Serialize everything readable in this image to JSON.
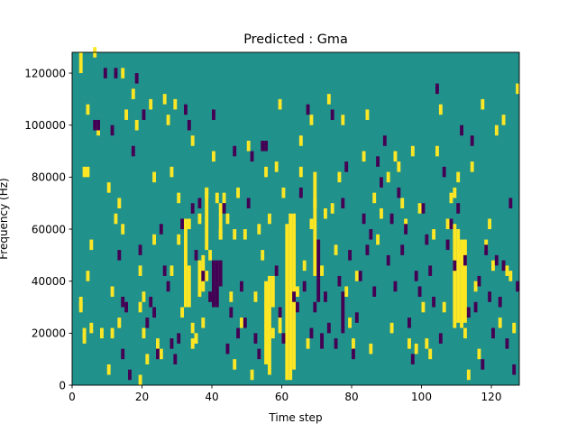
{
  "chart_data": {
    "type": "heatmap",
    "title": "Predicted : Gma",
    "xlabel": "Time step",
    "ylabel": "Frequency (Hz)",
    "xlim": [
      0,
      128
    ],
    "ylim": [
      0,
      128000
    ],
    "x_ticks": [
      0,
      20,
      40,
      60,
      80,
      100,
      120
    ],
    "y_ticks": [
      0,
      20000,
      40000,
      60000,
      80000,
      100000,
      120000
    ],
    "x_tick_labels": [
      "0",
      "20",
      "40",
      "60",
      "80",
      "100",
      "120"
    ],
    "y_tick_labels": [
      "0",
      "20000",
      "40000",
      "60000",
      "80000",
      "100000",
      "120000"
    ],
    "n_time_steps": 128,
    "n_frequency_bins": 64,
    "bin_height_hz": 2000,
    "colormap": "viridis",
    "classes": [
      {
        "value": 0,
        "color": "#440154"
      },
      {
        "value": 1,
        "color": "#21918c"
      },
      {
        "value": 2,
        "color": "#fde725"
      }
    ],
    "background_value": 1,
    "yellow_vertical_bands": [
      {
        "t": 32,
        "f_from": 30000,
        "f_to": 64000
      },
      {
        "t": 33,
        "f_from": 30000,
        "f_to": 46000
      },
      {
        "t": 36,
        "f_from": 34000,
        "f_to": 48000
      },
      {
        "t": 37,
        "f_from": 36000,
        "f_to": 50000
      },
      {
        "t": 38,
        "f_from": 52000,
        "f_to": 76000
      },
      {
        "t": 42,
        "f_from": 56000,
        "f_to": 70000
      },
      {
        "t": 55,
        "f_from": 8000,
        "f_to": 40000
      },
      {
        "t": 56,
        "f_from": 4000,
        "f_to": 42000
      },
      {
        "t": 57,
        "f_from": 30000,
        "f_to": 42000
      },
      {
        "t": 59,
        "f_from": 20000,
        "f_to": 30000
      },
      {
        "t": 61,
        "f_from": 2000,
        "f_to": 62000
      },
      {
        "t": 62,
        "f_from": 2000,
        "f_to": 66000
      },
      {
        "t": 63,
        "f_from": 6000,
        "f_to": 66000
      },
      {
        "t": 69,
        "f_from": 42000,
        "f_to": 82000
      },
      {
        "t": 109,
        "f_from": 22000,
        "f_to": 62000
      },
      {
        "t": 110,
        "f_from": 24000,
        "f_to": 60000
      },
      {
        "t": 111,
        "f_from": 22000,
        "f_to": 56000
      },
      {
        "t": 112,
        "f_from": 24000,
        "f_to": 56000
      }
    ],
    "purple_vertical_bands": [
      {
        "t": 40,
        "f_from": 30000,
        "f_to": 48000
      },
      {
        "t": 41,
        "f_from": 30000,
        "f_to": 48000
      },
      {
        "t": 42,
        "f_from": 38000,
        "f_to": 48000
      },
      {
        "t": 70,
        "f_from": 32000,
        "f_to": 56000
      },
      {
        "t": 71,
        "f_from": 14000,
        "f_to": 20000
      },
      {
        "t": 77,
        "f_from": 20000,
        "f_to": 36000
      }
    ],
    "yellow_cells": [
      [
        2,
        121000
      ],
      [
        2,
        125000
      ],
      [
        3,
        81000
      ],
      [
        3,
        17000
      ],
      [
        3,
        19000
      ],
      [
        2,
        29000
      ],
      [
        2,
        31000
      ],
      [
        4,
        41000
      ],
      [
        4,
        81000
      ],
      [
        4,
        105000
      ],
      [
        5,
        53000
      ],
      [
        5,
        21000
      ],
      [
        6,
        127000
      ],
      [
        7,
        97000
      ],
      [
        8,
        19000
      ],
      [
        10,
        75000
      ],
      [
        10,
        5000
      ],
      [
        11,
        35000
      ],
      [
        11,
        19000
      ],
      [
        12,
        63000
      ],
      [
        13,
        23000
      ],
      [
        13,
        69000
      ],
      [
        14,
        59000
      ],
      [
        14,
        119000
      ],
      [
        15,
        103000
      ],
      [
        17,
        111000
      ],
      [
        18,
        99000
      ],
      [
        19,
        1000
      ],
      [
        19,
        29000
      ],
      [
        19,
        43000
      ],
      [
        20,
        19000
      ],
      [
        20,
        33000
      ],
      [
        21,
        9000
      ],
      [
        22,
        107000
      ],
      [
        23,
        55000
      ],
      [
        23,
        79000
      ],
      [
        24,
        15000
      ],
      [
        25,
        11000
      ],
      [
        26,
        109000
      ],
      [
        27,
        101000
      ],
      [
        28,
        43000
      ],
      [
        28,
        81000
      ],
      [
        29,
        107000
      ],
      [
        30,
        71000
      ],
      [
        30,
        55000
      ],
      [
        31,
        27000
      ],
      [
        33,
        61000
      ],
      [
        34,
        93000
      ],
      [
        34,
        15000
      ],
      [
        34,
        21000
      ],
      [
        35,
        17000
      ],
      [
        35,
        17000
      ],
      [
        36,
        63000
      ],
      [
        37,
        23000
      ],
      [
        38,
        73000
      ],
      [
        38,
        41000
      ],
      [
        39,
        49000
      ],
      [
        40,
        87000
      ],
      [
        41,
        71000
      ],
      [
        42,
        57000
      ],
      [
        43,
        71000
      ],
      [
        44,
        63000
      ],
      [
        45,
        33000
      ],
      [
        46,
        7000
      ],
      [
        46,
        57000
      ],
      [
        47,
        73000
      ],
      [
        48,
        23000
      ],
      [
        49,
        57000
      ],
      [
        50,
        91000
      ],
      [
        51,
        3000
      ],
      [
        52,
        33000
      ],
      [
        53,
        59000
      ],
      [
        54,
        49000
      ],
      [
        55,
        81000
      ],
      [
        56,
        63000
      ],
      [
        57,
        19000
      ],
      [
        58,
        83000
      ],
      [
        59,
        107000
      ],
      [
        60,
        73000
      ],
      [
        64,
        35000
      ],
      [
        65,
        81000
      ],
      [
        65,
        93000
      ],
      [
        66,
        45000
      ],
      [
        67,
        15000
      ],
      [
        68,
        101000
      ],
      [
        68,
        61000
      ],
      [
        69,
        69000
      ],
      [
        71,
        43000
      ],
      [
        72,
        65000
      ],
      [
        73,
        109000
      ],
      [
        74,
        67000
      ],
      [
        75,
        51000
      ],
      [
        76,
        79000
      ],
      [
        77,
        101000
      ],
      [
        78,
        35000
      ],
      [
        79,
        23000
      ],
      [
        80,
        15000
      ],
      [
        81,
        41000
      ],
      [
        83,
        87000
      ],
      [
        84,
        103000
      ],
      [
        85,
        13000
      ],
      [
        86,
        71000
      ],
      [
        87,
        55000
      ],
      [
        88,
        65000
      ],
      [
        90,
        79000
      ],
      [
        91,
        21000
      ],
      [
        92,
        87000
      ],
      [
        93,
        83000
      ],
      [
        94,
        69000
      ],
      [
        95,
        61000
      ],
      [
        96,
        15000
      ],
      [
        97,
        89000
      ],
      [
        98,
        13000
      ],
      [
        99,
        67000
      ],
      [
        100,
        29000
      ],
      [
        101,
        15000
      ],
      [
        102,
        11000
      ],
      [
        103,
        57000
      ],
      [
        104,
        89000
      ],
      [
        105,
        105000
      ],
      [
        106,
        29000
      ],
      [
        107,
        61000
      ],
      [
        108,
        71000
      ],
      [
        109,
        73000
      ],
      [
        110,
        79000
      ],
      [
        111,
        49000
      ],
      [
        112,
        19000
      ],
      [
        113,
        3000
      ],
      [
        114,
        83000
      ],
      [
        115,
        37000
      ],
      [
        116,
        11000
      ],
      [
        117,
        107000
      ],
      [
        118,
        53000
      ],
      [
        119,
        61000
      ],
      [
        120,
        45000
      ],
      [
        121,
        97000
      ],
      [
        122,
        23000
      ],
      [
        123,
        101000
      ],
      [
        124,
        43000
      ],
      [
        125,
        41000
      ],
      [
        126,
        21000
      ],
      [
        127,
        113000
      ]
    ],
    "purple_cells": [
      [
        6,
        99000
      ],
      [
        7,
        99000
      ],
      [
        9,
        119000
      ],
      [
        11,
        97000
      ],
      [
        12,
        119000
      ],
      [
        13,
        49000
      ],
      [
        14,
        31000
      ],
      [
        14,
        11000
      ],
      [
        15,
        29000
      ],
      [
        16,
        3000
      ],
      [
        17,
        89000
      ],
      [
        18,
        117000
      ],
      [
        19,
        51000
      ],
      [
        20,
        103000
      ],
      [
        21,
        23000
      ],
      [
        22,
        31000
      ],
      [
        23,
        27000
      ],
      [
        24,
        11000
      ],
      [
        25,
        59000
      ],
      [
        26,
        43000
      ],
      [
        27,
        37000
      ],
      [
        28,
        15000
      ],
      [
        29,
        9000
      ],
      [
        30,
        17000
      ],
      [
        31,
        61000
      ],
      [
        32,
        105000
      ],
      [
        33,
        99000
      ],
      [
        34,
        67000
      ],
      [
        35,
        49000
      ],
      [
        36,
        69000
      ],
      [
        37,
        41000
      ],
      [
        39,
        33000
      ],
      [
        40,
        103000
      ],
      [
        43,
        67000
      ],
      [
        44,
        13000
      ],
      [
        45,
        27000
      ],
      [
        46,
        89000
      ],
      [
        47,
        19000
      ],
      [
        48,
        37000
      ],
      [
        49,
        23000
      ],
      [
        50,
        69000
      ],
      [
        51,
        87000
      ],
      [
        52,
        17000
      ],
      [
        53,
        11000
      ],
      [
        54,
        91000
      ],
      [
        55,
        91000
      ],
      [
        58,
        43000
      ],
      [
        59,
        27000
      ],
      [
        60,
        17000
      ],
      [
        63,
        33000
      ],
      [
        64,
        29000
      ],
      [
        65,
        73000
      ],
      [
        66,
        37000
      ],
      [
        67,
        105000
      ],
      [
        68,
        19000
      ],
      [
        69,
        29000
      ],
      [
        72,
        33000
      ],
      [
        73,
        21000
      ],
      [
        74,
        103000
      ],
      [
        75,
        15000
      ],
      [
        76,
        39000
      ],
      [
        77,
        69000
      ],
      [
        78,
        83000
      ],
      [
        79,
        49000
      ],
      [
        80,
        11000
      ],
      [
        81,
        25000
      ],
      [
        82,
        41000
      ],
      [
        83,
        63000
      ],
      [
        84,
        51000
      ],
      [
        85,
        57000
      ],
      [
        86,
        35000
      ],
      [
        87,
        85000
      ],
      [
        88,
        77000
      ],
      [
        89,
        93000
      ],
      [
        90,
        47000
      ],
      [
        91,
        63000
      ],
      [
        92,
        37000
      ],
      [
        93,
        73000
      ],
      [
        94,
        51000
      ],
      [
        95,
        59000
      ],
      [
        96,
        23000
      ],
      [
        97,
        9000
      ],
      [
        98,
        41000
      ],
      [
        99,
        35000
      ],
      [
        100,
        67000
      ],
      [
        101,
        55000
      ],
      [
        102,
        43000
      ],
      [
        103,
        31000
      ],
      [
        104,
        113000
      ],
      [
        105,
        17000
      ],
      [
        106,
        81000
      ],
      [
        107,
        53000
      ],
      [
        108,
        61000
      ],
      [
        109,
        45000
      ],
      [
        110,
        67000
      ],
      [
        111,
        97000
      ],
      [
        112,
        47000
      ],
      [
        113,
        27000
      ],
      [
        114,
        93000
      ],
      [
        115,
        29000
      ],
      [
        116,
        39000
      ],
      [
        117,
        7000
      ],
      [
        118,
        51000
      ],
      [
        119,
        33000
      ],
      [
        120,
        19000
      ],
      [
        121,
        47000
      ],
      [
        122,
        31000
      ],
      [
        123,
        45000
      ],
      [
        124,
        15000
      ],
      [
        125,
        69000
      ],
      [
        126,
        5000
      ],
      [
        127,
        37000
      ]
    ]
  }
}
